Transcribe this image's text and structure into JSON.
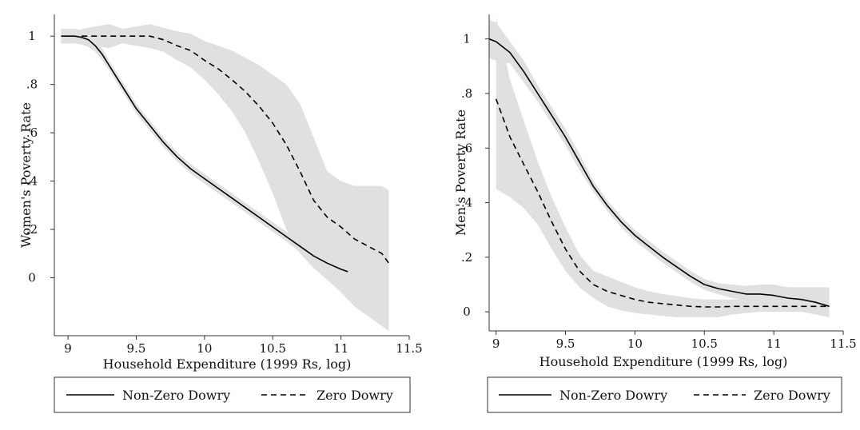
{
  "chart_data": [
    {
      "type": "line",
      "id": "women",
      "xlabel": "Household Expenditure (1999 Rs, log)",
      "ylabel": "Women's Poverty Rate",
      "xlim": [
        8.9,
        11.5
      ],
      "ylim": [
        -0.24,
        1.09
      ],
      "xticks": [
        9,
        9.5,
        10,
        10.5,
        11,
        11.5
      ],
      "xtick_labels": [
        "9",
        "9.5",
        "10",
        "10.5",
        "11",
        "11.5"
      ],
      "yticks": [
        0,
        0.2,
        0.4,
        0.6,
        0.8,
        1
      ],
      "ytick_labels": [
        "0",
        ".2",
        ".4",
        ".6",
        ".8",
        "1"
      ],
      "legend": {
        "position": "bottom",
        "entries": [
          "Non-Zero Dowry",
          "Zero Dowry"
        ]
      },
      "series": [
        {
          "name": "Non-Zero Dowry",
          "style": "solid",
          "x": [
            8.95,
            9.05,
            9.1,
            9.15,
            9.2,
            9.25,
            9.3,
            9.35,
            9.4,
            9.5,
            9.6,
            9.7,
            9.8,
            9.9,
            10.0,
            10.1,
            10.2,
            10.3,
            10.4,
            10.5,
            10.6,
            10.7,
            10.8,
            10.9,
            11.0,
            11.05
          ],
          "y": [
            1.0,
            1.0,
            0.995,
            0.985,
            0.96,
            0.925,
            0.88,
            0.835,
            0.79,
            0.7,
            0.63,
            0.56,
            0.5,
            0.45,
            0.41,
            0.37,
            0.33,
            0.29,
            0.25,
            0.21,
            0.17,
            0.13,
            0.09,
            0.06,
            0.035,
            0.025
          ],
          "ci_lower": [
            0.97,
            0.97,
            0.965,
            0.955,
            0.935,
            0.9,
            0.86,
            0.815,
            0.77,
            0.68,
            0.61,
            0.54,
            0.48,
            0.43,
            0.39,
            0.35,
            0.31,
            0.27,
            0.23,
            0.19,
            0.15,
            0.105,
            0.065,
            0.03,
            0.005,
            -0.005
          ],
          "ci_upper": [
            1.03,
            1.03,
            1.025,
            1.015,
            0.985,
            0.95,
            0.9,
            0.855,
            0.81,
            0.72,
            0.65,
            0.58,
            0.52,
            0.47,
            0.43,
            0.39,
            0.35,
            0.31,
            0.27,
            0.23,
            0.19,
            0.15,
            0.115,
            0.085,
            0.06,
            0.05
          ]
        },
        {
          "name": "Zero Dowry",
          "style": "dashed",
          "x": [
            9.1,
            9.2,
            9.3,
            9.4,
            9.5,
            9.6,
            9.7,
            9.8,
            9.9,
            10.0,
            10.1,
            10.2,
            10.3,
            10.4,
            10.5,
            10.6,
            10.7,
            10.8,
            10.9,
            11.0,
            11.1,
            11.2,
            11.3,
            11.35
          ],
          "y": [
            1.0,
            1.0,
            1.0,
            1.0,
            1.0,
            1.0,
            0.985,
            0.96,
            0.94,
            0.9,
            0.865,
            0.82,
            0.77,
            0.71,
            0.64,
            0.55,
            0.44,
            0.32,
            0.25,
            0.21,
            0.16,
            0.13,
            0.1,
            0.06
          ],
          "ci_lower": [
            0.97,
            0.96,
            0.95,
            0.97,
            0.96,
            0.95,
            0.935,
            0.9,
            0.87,
            0.82,
            0.76,
            0.69,
            0.6,
            0.48,
            0.35,
            0.2,
            0.1,
            0.04,
            -0.01,
            -0.06,
            -0.12,
            -0.16,
            -0.2,
            -0.22
          ],
          "ci_upper": [
            1.03,
            1.04,
            1.05,
            1.03,
            1.04,
            1.05,
            1.035,
            1.02,
            1.01,
            0.98,
            0.96,
            0.94,
            0.91,
            0.88,
            0.84,
            0.8,
            0.72,
            0.58,
            0.44,
            0.4,
            0.38,
            0.38,
            0.38,
            0.36
          ]
        }
      ]
    },
    {
      "type": "line",
      "id": "men",
      "xlabel": "Household Expenditure (1999 Rs, log)",
      "ylabel": "Men's Poverty Rate",
      "xlim": [
        8.95,
        11.5
      ],
      "ylim": [
        -0.07,
        1.09
      ],
      "xticks": [
        9,
        9.5,
        10,
        10.5,
        11,
        11.5
      ],
      "xtick_labels": [
        "9",
        "9.5",
        "10",
        "10.5",
        "11",
        "11.5"
      ],
      "yticks": [
        0,
        0.2,
        0.4,
        0.6,
        0.8,
        1
      ],
      "ytick_labels": [
        "0",
        ".2",
        ".4",
        ".6",
        ".8",
        "1"
      ],
      "legend": {
        "position": "bottom",
        "entries": [
          "Non-Zero Dowry",
          "Zero Dowry"
        ]
      },
      "series": [
        {
          "name": "Non-Zero Dowry",
          "style": "solid",
          "x": [
            8.95,
            9.0,
            9.1,
            9.2,
            9.3,
            9.4,
            9.5,
            9.6,
            9.7,
            9.8,
            9.9,
            10.0,
            10.1,
            10.2,
            10.3,
            10.4,
            10.5,
            10.6,
            10.7,
            10.8,
            10.9,
            11.0,
            11.1,
            11.2,
            11.3,
            11.4
          ],
          "y": [
            1.0,
            0.99,
            0.95,
            0.88,
            0.8,
            0.72,
            0.64,
            0.55,
            0.46,
            0.39,
            0.33,
            0.28,
            0.24,
            0.2,
            0.165,
            0.13,
            0.1,
            0.085,
            0.075,
            0.065,
            0.065,
            0.06,
            0.05,
            0.045,
            0.035,
            0.02
          ],
          "ci_lower": [
            0.93,
            0.92,
            0.91,
            0.84,
            0.77,
            0.69,
            0.61,
            0.52,
            0.44,
            0.37,
            0.31,
            0.26,
            0.22,
            0.18,
            0.145,
            0.11,
            0.08,
            0.065,
            0.05,
            0.04,
            0.03,
            0.02,
            0.01,
            0.0,
            -0.01,
            -0.02
          ],
          "ci_upper": [
            1.07,
            1.06,
            0.99,
            0.92,
            0.83,
            0.75,
            0.67,
            0.58,
            0.48,
            0.41,
            0.35,
            0.3,
            0.26,
            0.22,
            0.185,
            0.15,
            0.12,
            0.105,
            0.1,
            0.095,
            0.1,
            0.1,
            0.09,
            0.09,
            0.09,
            0.09
          ]
        },
        {
          "name": "Zero Dowry",
          "style": "dashed",
          "x": [
            9.0,
            9.1,
            9.2,
            9.3,
            9.4,
            9.5,
            9.6,
            9.7,
            9.8,
            9.9,
            10.0,
            10.1,
            10.2,
            10.3,
            10.4,
            10.5,
            10.6,
            10.7,
            10.8,
            10.9,
            11.0,
            11.1,
            11.2,
            11.3,
            11.4
          ],
          "y": [
            0.78,
            0.64,
            0.54,
            0.44,
            0.33,
            0.23,
            0.15,
            0.1,
            0.075,
            0.06,
            0.045,
            0.035,
            0.03,
            0.025,
            0.02,
            0.018,
            0.018,
            0.02,
            0.02,
            0.02,
            0.02,
            0.02,
            0.02,
            0.02,
            0.02
          ],
          "ci_lower": [
            0.45,
            0.42,
            0.38,
            0.32,
            0.23,
            0.15,
            0.09,
            0.05,
            0.02,
            0.005,
            -0.005,
            -0.01,
            -0.015,
            -0.02,
            -0.02,
            -0.02,
            -0.02,
            -0.01,
            -0.005,
            0.0,
            0.0,
            0.0,
            0.0,
            0.0,
            0.0
          ],
          "ci_upper": [
            1.08,
            0.85,
            0.7,
            0.55,
            0.42,
            0.31,
            0.21,
            0.15,
            0.13,
            0.11,
            0.09,
            0.075,
            0.065,
            0.058,
            0.05,
            0.045,
            0.045,
            0.045,
            0.045,
            0.04,
            0.04,
            0.04,
            0.04,
            0.04,
            0.04
          ]
        }
      ]
    }
  ]
}
